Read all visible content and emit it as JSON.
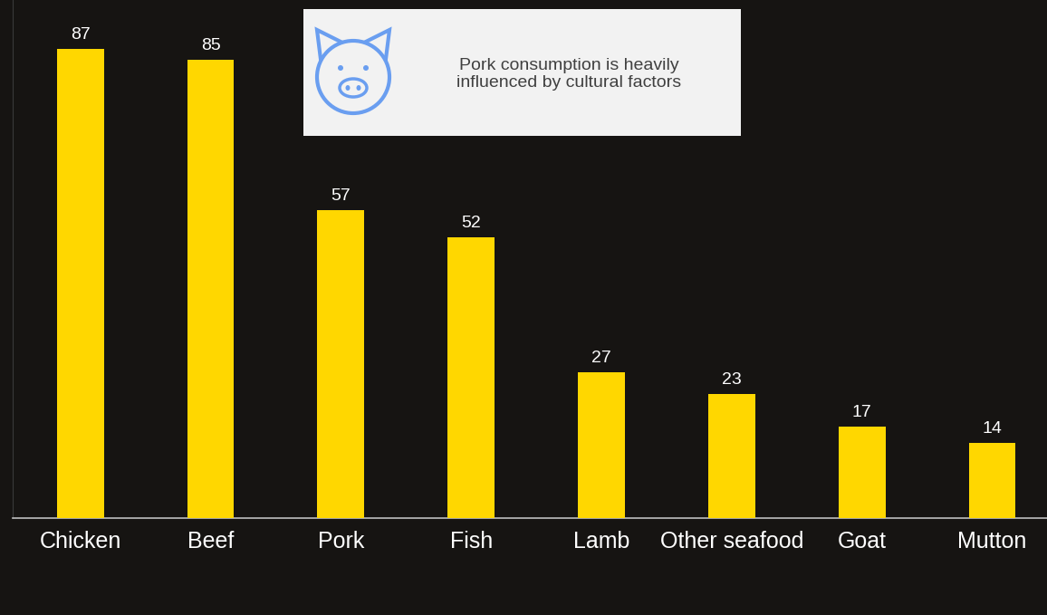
{
  "chart_data": {
    "type": "bar",
    "annotation": "Pork consumption is heavily influenced by cultural factors",
    "categories": [
      "Chicken",
      "Beef",
      "Pork",
      "Fish",
      "Lamb",
      "Other seafood",
      "Goat",
      "Mutton"
    ],
    "values": [
      87,
      85,
      57,
      52,
      27,
      23,
      17,
      14
    ],
    "color": "#FFD700",
    "ylim": [
      0,
      96
    ],
    "yticks": [],
    "grid": false,
    "data_labels": true,
    "tick_labels": "x"
  }
}
